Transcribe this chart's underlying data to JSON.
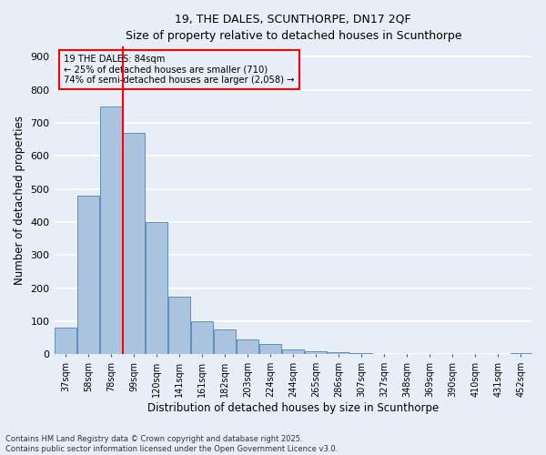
{
  "title_line1": "19, THE DALES, SCUNTHORPE, DN17 2QF",
  "title_line2": "Size of property relative to detached houses in Scunthorpe",
  "xlabel": "Distribution of detached houses by size in Scunthorpe",
  "ylabel": "Number of detached properties",
  "categories": [
    "37sqm",
    "58sqm",
    "78sqm",
    "99sqm",
    "120sqm",
    "141sqm",
    "161sqm",
    "182sqm",
    "203sqm",
    "224sqm",
    "244sqm",
    "265sqm",
    "286sqm",
    "307sqm",
    "327sqm",
    "348sqm",
    "369sqm",
    "390sqm",
    "410sqm",
    "431sqm",
    "452sqm"
  ],
  "values": [
    80,
    480,
    750,
    670,
    400,
    175,
    100,
    75,
    45,
    32,
    15,
    10,
    8,
    5,
    2,
    2,
    0,
    0,
    0,
    0,
    5
  ],
  "bar_color": "#aac4e0",
  "bar_edge_color": "#5a8fc0",
  "bg_color": "#e8eef8",
  "grid_color": "#ffffff",
  "vline_x": 2.5,
  "vline_color": "red",
  "annotation_text": "19 THE DALES: 84sqm\n← 25% of detached houses are smaller (710)\n74% of semi-detached houses are larger (2,058) →",
  "annotation_box_color": "red",
  "ylim": [
    0,
    930
  ],
  "yticks": [
    0,
    100,
    200,
    300,
    400,
    500,
    600,
    700,
    800,
    900
  ],
  "footer_line1": "Contains HM Land Registry data © Crown copyright and database right 2025.",
  "footer_line2": "Contains public sector information licensed under the Open Government Licence v3.0."
}
